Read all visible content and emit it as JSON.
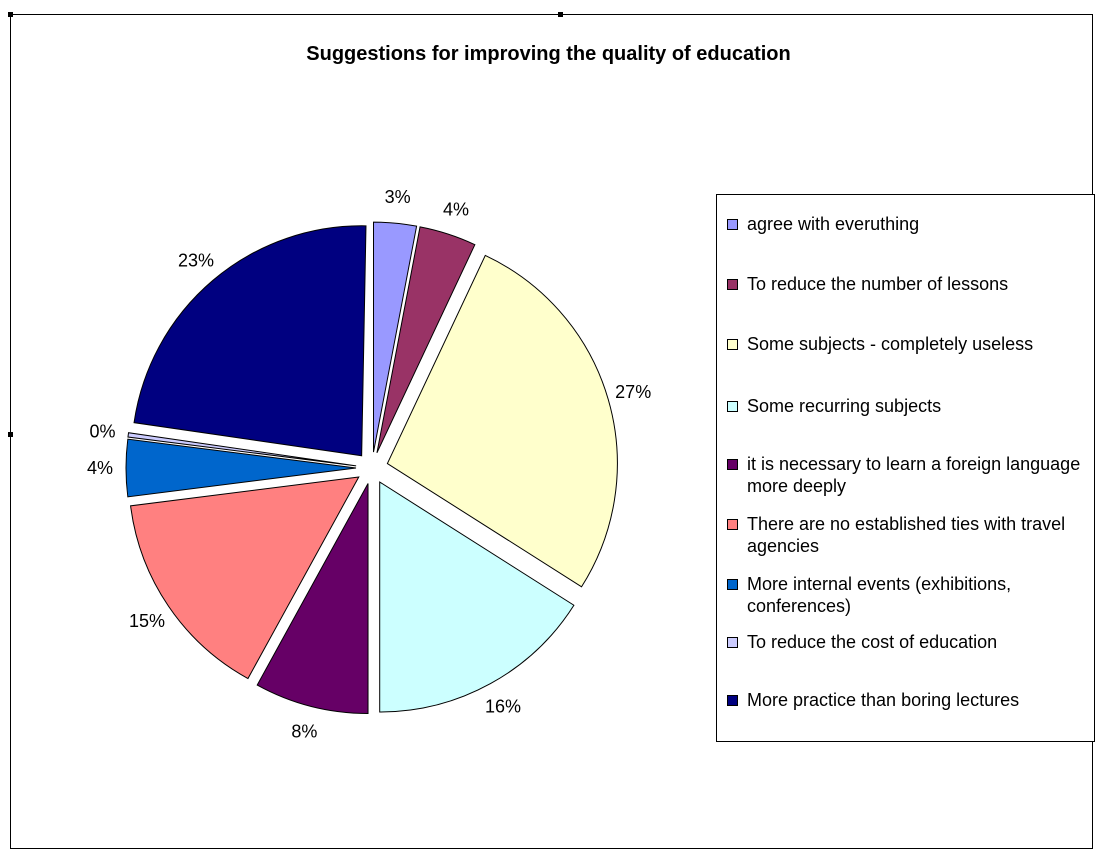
{
  "chart_data": {
    "type": "pie",
    "title": "Suggestions for improving the quality of education",
    "slices": [
      {
        "label": "agree with everuthing",
        "value": 3,
        "value_label": "3%",
        "color": "#9999FF"
      },
      {
        "label": "To reduce the number of lessons",
        "value": 4,
        "value_label": "4%",
        "color": "#993366"
      },
      {
        "label": "Some subjects - completely useless",
        "value": 27,
        "value_label": "27%",
        "color": "#FFFFCC"
      },
      {
        "label": "Some recurring subjects",
        "value": 16,
        "value_label": "16%",
        "color": "#CCFFFF"
      },
      {
        "label": "it is necessary to learn a foreign language more deeply",
        "value": 8,
        "value_label": "8%",
        "color": "#660066"
      },
      {
        "label": "There are no established ties with travel agencies",
        "value": 15,
        "value_label": "15%",
        "color": "#FF8080"
      },
      {
        "label": "More internal events (exhibitions, conferences)",
        "value": 4,
        "value_label": "4%",
        "color": "#0066CC"
      },
      {
        "label": "To reduce the cost of education",
        "value": 0,
        "value_label": "0%",
        "color": "#CCCCFF"
      },
      {
        "label": "More practice than boring lectures",
        "value": 23,
        "value_label": "23%",
        "color": "#000080"
      }
    ],
    "legend_position": "right",
    "exploded": true
  }
}
